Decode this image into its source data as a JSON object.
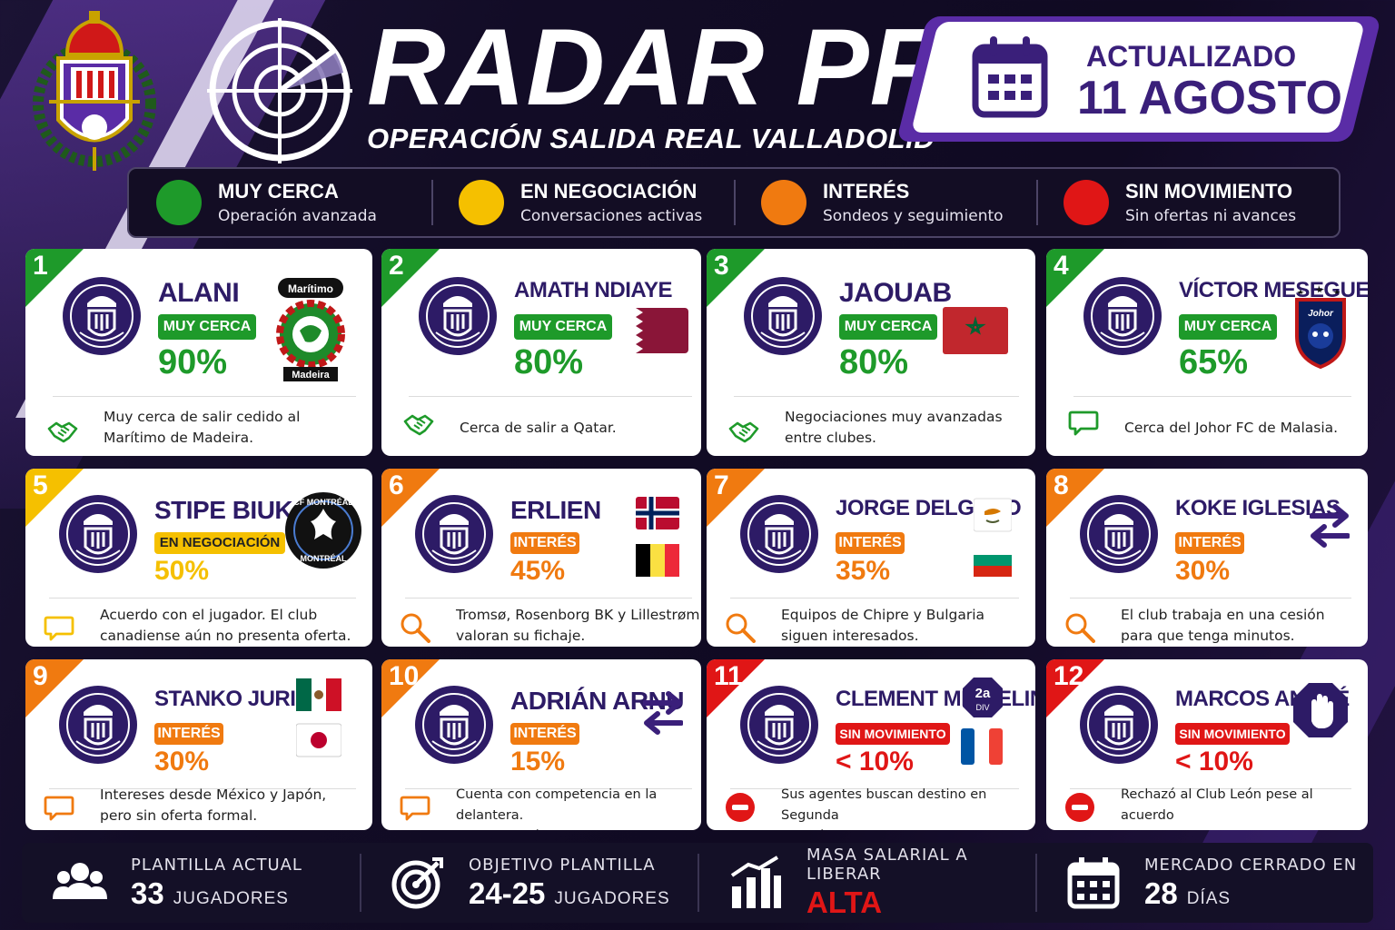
{
  "header": {
    "title": "RADAR PF",
    "subtitle": "OPERACIÓN SALIDA REAL VALLADOLID",
    "update_label": "ACTUALIZADO",
    "update_date": "11 AGOSTO"
  },
  "legend": [
    {
      "title": "MUY CERCA",
      "sub": "Operación avanzada",
      "color": "#1e9a2a"
    },
    {
      "title": "EN NEGOCIACIÓN",
      "sub": "Conversaciones activas",
      "color": "#f5c000"
    },
    {
      "title": "INTERÉS",
      "sub": "Sondeos y seguimiento",
      "color": "#f07a10"
    },
    {
      "title": "SIN MOVIMIENTO",
      "sub": "Sin ofertas ni avances",
      "color": "#e01616"
    }
  ],
  "colors": {
    "green": "#1e9a2a",
    "yellow": "#f5c000",
    "orange": "#f07a10",
    "red": "#e01616",
    "purple": "#3a1f7a"
  },
  "players": [
    {
      "num": "1",
      "name": "ALANI",
      "status": "MUY CERCA",
      "pct": "90%",
      "percent_value": 90,
      "note": [
        "Muy cerca de salir cedido al",
        "Marítimo de Madeira."
      ],
      "club_top": "Marítimo",
      "club_bottom": "Madeira",
      "icon": "handshake-icon"
    },
    {
      "num": "2",
      "name": "AMATH NDIAYE",
      "status": "MUY CERCA",
      "pct": "80%",
      "percent_value": 80,
      "note": [
        "Cerca de salir a Qatar."
      ],
      "icon": "handshake-icon",
      "extra": "qatar-flag"
    },
    {
      "num": "3",
      "name": "JAOUAB",
      "status": "MUY CERCA",
      "pct": "80%",
      "percent_value": 80,
      "note": [
        "Negociaciones muy avanzadas",
        "entre clubes."
      ],
      "icon": "handshake-icon",
      "extra": "morocco-flag"
    },
    {
      "num": "4",
      "name": "VÍCTOR MESEGUER",
      "status": "MUY CERCA",
      "pct": "65%",
      "percent_value": 65,
      "note": [
        "Cerca del Johor FC de Malasia."
      ],
      "icon": "speech-bubble-icon",
      "extra": "johor-crest",
      "club_text": "Johor"
    },
    {
      "num": "5",
      "name": "STIPE BIUK",
      "status": "EN NEGOCIACIÓN",
      "pct": "50%",
      "percent_value": 50,
      "note": [
        "Acuerdo con el jugador. El club",
        "canadiense aún no presenta oferta."
      ],
      "icon": "speech-bubble-icon",
      "club_top": "CF MONTRÉAL",
      "club_bottom": "MONTRÉAL"
    },
    {
      "num": "6",
      "name": "ERLIEN",
      "status": "INTERÉS",
      "pct": "45%",
      "percent_value": 45,
      "note": [
        "Tromsø, Rosenborg BK y Lillestrøm",
        "valoran su fichaje."
      ],
      "icon": "magnifier-icon",
      "extra": "norway-belgium-flags"
    },
    {
      "num": "7",
      "name": "JORGE DELGADO",
      "status": "INTERÉS",
      "pct": "35%",
      "percent_value": 35,
      "note": [
        "Equipos de Chipre y Bulgaria",
        "siguen interesados."
      ],
      "icon": "magnifier-icon",
      "extra": "cyprus-bulgaria-flags"
    },
    {
      "num": "8",
      "name": "KOKE IGLESIAS",
      "status": "INTERÉS",
      "pct": "30%",
      "percent_value": 30,
      "note": [
        "El club trabaja en una cesión",
        "para que tenga minutos."
      ],
      "icon": "magnifier-icon",
      "extra": "transfer-arrows"
    },
    {
      "num": "9",
      "name": "STANKO JURIĆ",
      "status": "INTERÉS",
      "pct": "30%",
      "percent_value": 30,
      "note": [
        "Intereses desde México y Japón,",
        "pero sin oferta formal."
      ],
      "icon": "speech-bubble-icon",
      "extra": "mexico-japan-flags"
    },
    {
      "num": "10",
      "name": "ADRIÁN ARNU",
      "status": "INTERÉS",
      "pct": "15%",
      "percent_value": 15,
      "note": [
        "Cuenta con competencia en la delantera.",
        "Posible cesión si llega oportunidad."
      ],
      "icon": "speech-bubble-icon",
      "extra": "transfer-arrows"
    },
    {
      "num": "11",
      "name": "CLEMENT MICHELIN",
      "status": "SIN MOVIMIENTO",
      "pct": "< 10%",
      "percent_value": 10,
      "note": [
        "Sus agentes buscan destino en Segunda",
        "División o Francia. Sin ofertas."
      ],
      "icon": "no-entry-icon",
      "extra": "2a-div-france",
      "div_top": "2a",
      "div_bottom": "DIV"
    },
    {
      "num": "12",
      "name": "MARCOS ANDRÉ",
      "status": "SIN MOVIMIENTO",
      "pct": "< 10%",
      "percent_value": 10,
      "note": [
        "Rechazó al Club León pese al acuerdo",
        "entre clubes. Sin nuevas propuestas."
      ],
      "icon": "no-entry-icon",
      "extra": "stop-hand-icon"
    }
  ],
  "footer": [
    {
      "label": "PLANTILLA ACTUAL",
      "value": "33",
      "unit": "JUGADORES",
      "icon": "group-icon"
    },
    {
      "label": "OBJETIVO PLANTILLA",
      "value": "24-25",
      "unit": "JUGADORES",
      "icon": "target-icon"
    },
    {
      "label": "MASA SALARIAL A LIBERAR",
      "value": "ALTA",
      "unit": "",
      "icon": "bar-chart-icon",
      "value_color": "#e01616"
    },
    {
      "label": "MERCADO CERRADO EN",
      "value": "28",
      "unit": "DÍAS",
      "icon": "calendar-icon"
    }
  ]
}
